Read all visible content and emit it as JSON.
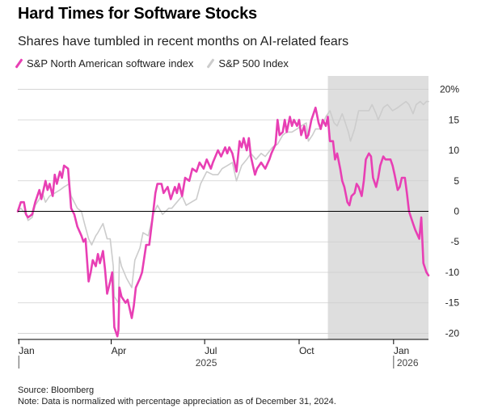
{
  "header": {
    "title": "Hard Times for Software Stocks",
    "subtitle": "Shares have tumbled in recent months on AI-related fears"
  },
  "footer": {
    "source": "Source: Bloomberg",
    "note": "Note: Data is normalized with percentage appreciation as of December 31, 2024."
  },
  "colors": {
    "software": "#e83fb4",
    "sp500": "#cccccc",
    "shade": "#dedede",
    "grid": "#cfcfcf"
  },
  "chart_data": {
    "type": "line",
    "title": "Hard Times for Software Stocks",
    "subtitle": "Shares have tumbled in recent months on AI-related fears",
    "ylim": [
      -21,
      21
    ],
    "y_ticks": [
      -20,
      -15,
      -10,
      -5,
      0,
      5,
      10,
      15,
      20
    ],
    "y_tick_labels": [
      "-20",
      "-15",
      "-10",
      "-5",
      "0",
      "5",
      "10",
      "15",
      "20%"
    ],
    "x_range": [
      "2024-12-31",
      "2026-02-04"
    ],
    "x_ticks": [
      {
        "date": "2025-01-01",
        "label": "Jan"
      },
      {
        "date": "2025-04-01",
        "label": "Apr"
      },
      {
        "date": "2025-07-01",
        "label": "Jul"
      },
      {
        "date": "2025-10-01",
        "label": "Oct"
      },
      {
        "date": "2026-01-01",
        "label": "Jan"
      }
    ],
    "year_labels": [
      "2025",
      "2026"
    ],
    "shaded_range": [
      "2025-10-29",
      "2026-02-04"
    ],
    "reference_line": 0,
    "grid": true,
    "legend_position": "top-left",
    "series": [
      {
        "name": "S&P North American software index",
        "color": "#e83fb4",
        "points": [
          [
            "2024-12-31",
            0
          ],
          [
            "2025-01-03",
            1.5
          ],
          [
            "2025-01-06",
            1.5
          ],
          [
            "2025-01-08",
            -0.5
          ],
          [
            "2025-01-10",
            -1
          ],
          [
            "2025-01-14",
            -0.5
          ],
          [
            "2025-01-17",
            1.5
          ],
          [
            "2025-01-21",
            3.5
          ],
          [
            "2025-01-23",
            2
          ],
          [
            "2025-01-27",
            5
          ],
          [
            "2025-01-29",
            3.5
          ],
          [
            "2025-01-31",
            4.5
          ],
          [
            "2025-02-03",
            2.5
          ],
          [
            "2025-02-05",
            6
          ],
          [
            "2025-02-07",
            4.5
          ],
          [
            "2025-02-10",
            6.5
          ],
          [
            "2025-02-12",
            5.5
          ],
          [
            "2025-02-14",
            7.5
          ],
          [
            "2025-02-18",
            7
          ],
          [
            "2025-02-21",
            0.5
          ],
          [
            "2025-02-24",
            -0.5
          ],
          [
            "2025-02-27",
            -2.5
          ],
          [
            "2025-03-03",
            -4
          ],
          [
            "2025-03-05",
            -5
          ],
          [
            "2025-03-07",
            -4.5
          ],
          [
            "2025-03-10",
            -11.5
          ],
          [
            "2025-03-12",
            -10
          ],
          [
            "2025-03-14",
            -8
          ],
          [
            "2025-03-17",
            -9
          ],
          [
            "2025-03-19",
            -7
          ],
          [
            "2025-03-21",
            -8.5
          ],
          [
            "2025-03-24",
            -6.5
          ],
          [
            "2025-03-26",
            -9.5
          ],
          [
            "2025-03-28",
            -13.5
          ],
          [
            "2025-03-31",
            -11.5
          ],
          [
            "2025-04-02",
            -10
          ],
          [
            "2025-04-04",
            -19
          ],
          [
            "2025-04-07",
            -20.5
          ],
          [
            "2025-04-08",
            -19.5
          ],
          [
            "2025-04-09",
            -12.5
          ],
          [
            "2025-04-11",
            -14
          ],
          [
            "2025-04-15",
            -15
          ],
          [
            "2025-04-17",
            -14.5
          ],
          [
            "2025-04-21",
            -17.5
          ],
          [
            "2025-04-23",
            -15.5
          ],
          [
            "2025-04-25",
            -12.5
          ],
          [
            "2025-04-29",
            -11
          ],
          [
            "2025-05-01",
            -10
          ],
          [
            "2025-05-05",
            -5.5
          ],
          [
            "2025-05-08",
            -5.5
          ],
          [
            "2025-05-12",
            0
          ],
          [
            "2025-05-14",
            3
          ],
          [
            "2025-05-16",
            4.5
          ],
          [
            "2025-05-20",
            4.5
          ],
          [
            "2025-05-22",
            3
          ],
          [
            "2025-05-26",
            4
          ],
          [
            "2025-05-29",
            2
          ],
          [
            "2025-06-02",
            4
          ],
          [
            "2025-06-04",
            3
          ],
          [
            "2025-06-06",
            4.5
          ],
          [
            "2025-06-09",
            2.5
          ],
          [
            "2025-06-12",
            5.5
          ],
          [
            "2025-06-16",
            5
          ],
          [
            "2025-06-19",
            7
          ],
          [
            "2025-06-23",
            6.5
          ],
          [
            "2025-06-26",
            8
          ],
          [
            "2025-06-30",
            7
          ],
          [
            "2025-07-03",
            8.5
          ],
          [
            "2025-07-07",
            7
          ],
          [
            "2025-07-09",
            8
          ],
          [
            "2025-07-14",
            10
          ],
          [
            "2025-07-17",
            9
          ],
          [
            "2025-07-21",
            10.5
          ],
          [
            "2025-07-23",
            9.5
          ],
          [
            "2025-07-25",
            10.5
          ],
          [
            "2025-07-28",
            9.5
          ],
          [
            "2025-08-01",
            6.5
          ],
          [
            "2025-08-04",
            11.5
          ],
          [
            "2025-08-06",
            10.5
          ],
          [
            "2025-08-08",
            12
          ],
          [
            "2025-08-11",
            10
          ],
          [
            "2025-08-13",
            12
          ],
          [
            "2025-08-15",
            9
          ],
          [
            "2025-08-19",
            6
          ],
          [
            "2025-08-21",
            7
          ],
          [
            "2025-08-25",
            8
          ],
          [
            "2025-08-27",
            7.5
          ],
          [
            "2025-08-29",
            7
          ],
          [
            "2025-09-02",
            8.5
          ],
          [
            "2025-09-04",
            9.5
          ],
          [
            "2025-09-08",
            11
          ],
          [
            "2025-09-10",
            15
          ],
          [
            "2025-09-12",
            12.5
          ],
          [
            "2025-09-15",
            13
          ],
          [
            "2025-09-17",
            15
          ],
          [
            "2025-09-19",
            13
          ],
          [
            "2025-09-22",
            15.5
          ],
          [
            "2025-09-24",
            14
          ],
          [
            "2025-09-26",
            15
          ],
          [
            "2025-09-29",
            14
          ],
          [
            "2025-10-01",
            15
          ],
          [
            "2025-10-03",
            12.5
          ],
          [
            "2025-10-06",
            14
          ],
          [
            "2025-10-08",
            12
          ],
          [
            "2025-10-10",
            12.5
          ],
          [
            "2025-10-13",
            15
          ],
          [
            "2025-10-15",
            16
          ],
          [
            "2025-10-17",
            17
          ],
          [
            "2025-10-20",
            14.5
          ],
          [
            "2025-10-22",
            13.5
          ],
          [
            "2025-10-24",
            15
          ],
          [
            "2025-10-27",
            14
          ],
          [
            "2025-10-29",
            15.5
          ],
          [
            "2025-10-31",
            11.5
          ],
          [
            "2025-11-03",
            11.5
          ],
          [
            "2025-11-05",
            8.5
          ],
          [
            "2025-11-07",
            9.5
          ],
          [
            "2025-11-10",
            7
          ],
          [
            "2025-11-12",
            5
          ],
          [
            "2025-11-14",
            4
          ],
          [
            "2025-11-17",
            1.5
          ],
          [
            "2025-11-19",
            1
          ],
          [
            "2025-11-21",
            2.5
          ],
          [
            "2025-11-24",
            3
          ],
          [
            "2025-11-26",
            4.5
          ],
          [
            "2025-11-28",
            4
          ],
          [
            "2025-12-01",
            2.5
          ],
          [
            "2025-12-03",
            5
          ],
          [
            "2025-12-05",
            8.5
          ],
          [
            "2025-12-08",
            9.5
          ],
          [
            "2025-12-10",
            9
          ],
          [
            "2025-12-12",
            5.5
          ],
          [
            "2025-12-15",
            4
          ],
          [
            "2025-12-17",
            5.5
          ],
          [
            "2025-12-19",
            7.5
          ],
          [
            "2025-12-22",
            9
          ],
          [
            "2025-12-24",
            8.5
          ],
          [
            "2025-12-29",
            8.5
          ],
          [
            "2025-12-31",
            7.5
          ],
          [
            "2026-01-02",
            6
          ],
          [
            "2026-01-05",
            3.5
          ],
          [
            "2026-01-07",
            4
          ],
          [
            "2026-01-09",
            5.5
          ],
          [
            "2026-01-12",
            5.5
          ],
          [
            "2026-01-14",
            3
          ],
          [
            "2026-01-16",
            0
          ],
          [
            "2026-01-20",
            -2
          ],
          [
            "2026-01-22",
            -3
          ],
          [
            "2026-01-26",
            -4.5
          ],
          [
            "2026-01-28",
            -1
          ],
          [
            "2026-01-30",
            -8.5
          ],
          [
            "2026-02-02",
            -10
          ],
          [
            "2026-02-04",
            -10.5
          ]
        ]
      },
      {
        "name": "S&P 500 Index",
        "color": "#cccccc",
        "points": [
          [
            "2024-12-31",
            0
          ],
          [
            "2025-01-03",
            0.5
          ],
          [
            "2025-01-08",
            -0.5
          ],
          [
            "2025-01-10",
            -1.5
          ],
          [
            "2025-01-14",
            -1
          ],
          [
            "2025-01-17",
            1
          ],
          [
            "2025-01-21",
            2
          ],
          [
            "2025-01-24",
            3
          ],
          [
            "2025-01-27",
            1.5
          ],
          [
            "2025-01-31",
            2.5
          ],
          [
            "2025-02-05",
            3
          ],
          [
            "2025-02-10",
            3.5
          ],
          [
            "2025-02-14",
            4
          ],
          [
            "2025-02-19",
            4.5
          ],
          [
            "2025-02-21",
            2.5
          ],
          [
            "2025-02-27",
            0.5
          ],
          [
            "2025-03-03",
            0
          ],
          [
            "2025-03-06",
            -2
          ],
          [
            "2025-03-10",
            -4.5
          ],
          [
            "2025-03-13",
            -5.5
          ],
          [
            "2025-03-17",
            -4
          ],
          [
            "2025-03-19",
            -3.5
          ],
          [
            "2025-03-24",
            -2
          ],
          [
            "2025-03-28",
            -4.5
          ],
          [
            "2025-03-31",
            -4.5
          ],
          [
            "2025-04-03",
            -9
          ],
          [
            "2025-04-04",
            -14
          ],
          [
            "2025-04-08",
            -15
          ],
          [
            "2025-04-09",
            -7.5
          ],
          [
            "2025-04-11",
            -9
          ],
          [
            "2025-04-16",
            -11
          ],
          [
            "2025-04-21",
            -12.5
          ],
          [
            "2025-04-24",
            -8
          ],
          [
            "2025-04-29",
            -6
          ],
          [
            "2025-05-02",
            -3.5
          ],
          [
            "2025-05-07",
            -4
          ],
          [
            "2025-05-12",
            -0.5
          ],
          [
            "2025-05-16",
            1
          ],
          [
            "2025-05-21",
            -0.5
          ],
          [
            "2025-05-27",
            0.5
          ],
          [
            "2025-05-30",
            0.5
          ],
          [
            "2025-06-04",
            1.5
          ],
          [
            "2025-06-09",
            2.5
          ],
          [
            "2025-06-13",
            1
          ],
          [
            "2025-06-18",
            1.5
          ],
          [
            "2025-06-23",
            2
          ],
          [
            "2025-06-27",
            4.5
          ],
          [
            "2025-07-03",
            6.5
          ],
          [
            "2025-07-09",
            6
          ],
          [
            "2025-07-14",
            6
          ],
          [
            "2025-07-18",
            7
          ],
          [
            "2025-07-23",
            7.5
          ],
          [
            "2025-07-28",
            8
          ],
          [
            "2025-08-01",
            5
          ],
          [
            "2025-08-06",
            7.5
          ],
          [
            "2025-08-11",
            8.5
          ],
          [
            "2025-08-15",
            9.5
          ],
          [
            "2025-08-20",
            8.5
          ],
          [
            "2025-08-25",
            9.5
          ],
          [
            "2025-08-29",
            9
          ],
          [
            "2025-09-05",
            10.5
          ],
          [
            "2025-09-10",
            11
          ],
          [
            "2025-09-15",
            12.5
          ],
          [
            "2025-09-19",
            13
          ],
          [
            "2025-09-24",
            13
          ],
          [
            "2025-09-29",
            13.5
          ],
          [
            "2025-10-03",
            14
          ],
          [
            "2025-10-08",
            14.5
          ],
          [
            "2025-10-10",
            11.5
          ],
          [
            "2025-10-14",
            12.5
          ],
          [
            "2025-10-17",
            13.5
          ],
          [
            "2025-10-22",
            13.5
          ],
          [
            "2025-10-27",
            15.5
          ],
          [
            "2025-10-31",
            16.5
          ],
          [
            "2025-11-04",
            14.5
          ],
          [
            "2025-11-07",
            14
          ],
          [
            "2025-11-12",
            16
          ],
          [
            "2025-11-14",
            15
          ],
          [
            "2025-11-18",
            13
          ],
          [
            "2025-11-20",
            11.5
          ],
          [
            "2025-11-24",
            13.5
          ],
          [
            "2025-11-28",
            16.5
          ],
          [
            "2025-12-03",
            16.5
          ],
          [
            "2025-12-08",
            16.5
          ],
          [
            "2025-12-11",
            17.5
          ],
          [
            "2025-12-15",
            16
          ],
          [
            "2025-12-17",
            15
          ],
          [
            "2025-12-22",
            17
          ],
          [
            "2025-12-26",
            17.5
          ],
          [
            "2025-12-31",
            16.5
          ],
          [
            "2026-01-05",
            17
          ],
          [
            "2026-01-09",
            17.5
          ],
          [
            "2026-01-13",
            18
          ],
          [
            "2026-01-16",
            17.5
          ],
          [
            "2026-01-20",
            16
          ],
          [
            "2026-01-23",
            17.5
          ],
          [
            "2026-01-27",
            18
          ],
          [
            "2026-01-30",
            17.5
          ],
          [
            "2026-02-02",
            18
          ],
          [
            "2026-02-04",
            18
          ]
        ]
      }
    ]
  }
}
